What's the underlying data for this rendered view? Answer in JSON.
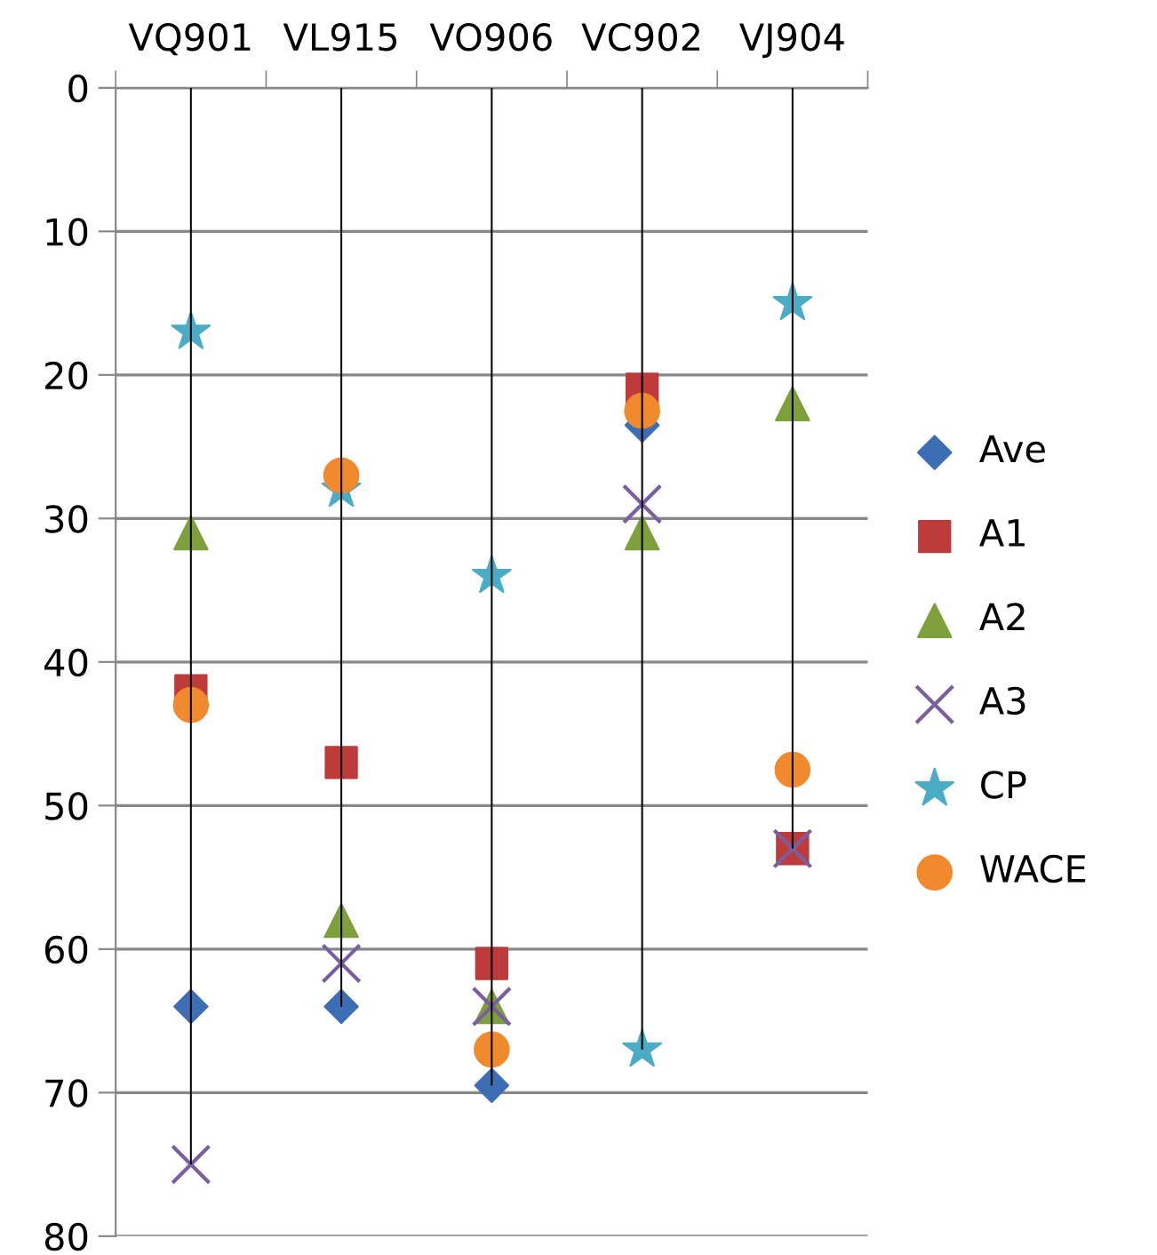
{
  "chart_data": {
    "type": "scatter",
    "categories": [
      "VQ901",
      "VL915",
      "VO906",
      "VC902",
      "VJ904"
    ],
    "ylim": [
      80,
      0
    ],
    "yticks": [
      0,
      10,
      20,
      30,
      40,
      50,
      60,
      70,
      80
    ],
    "grid": "y",
    "legend": "right",
    "series": [
      {
        "type": "bar",
        "color": "#000000",
        "values": [
          75,
          64,
          69.5,
          67,
          53
        ]
      },
      {
        "name": "Ave",
        "color": "#3d6eb4",
        "marker": "diamond",
        "values": [
          64,
          64,
          69.5,
          23.5,
          null
        ]
      },
      {
        "name": "A1",
        "color": "#be3b3b",
        "marker": "square",
        "values": [
          42,
          47,
          61,
          21,
          53
        ]
      },
      {
        "name": "A2",
        "color": "#7ea03c",
        "marker": "triangle",
        "values": [
          31,
          58,
          64,
          31,
          22
        ]
      },
      {
        "name": "A3",
        "color": "#7a5fa0",
        "marker": "cross",
        "values": [
          75,
          61,
          64,
          29,
          53
        ]
      },
      {
        "name": "CP",
        "color": "#4bacc6",
        "marker": "star",
        "values": [
          17,
          28,
          34,
          67,
          15
        ]
      },
      {
        "name": "WACE",
        "color": "#f18a2d",
        "marker": "circle",
        "values": [
          43,
          27,
          67,
          22.5,
          47.5
        ]
      }
    ]
  }
}
